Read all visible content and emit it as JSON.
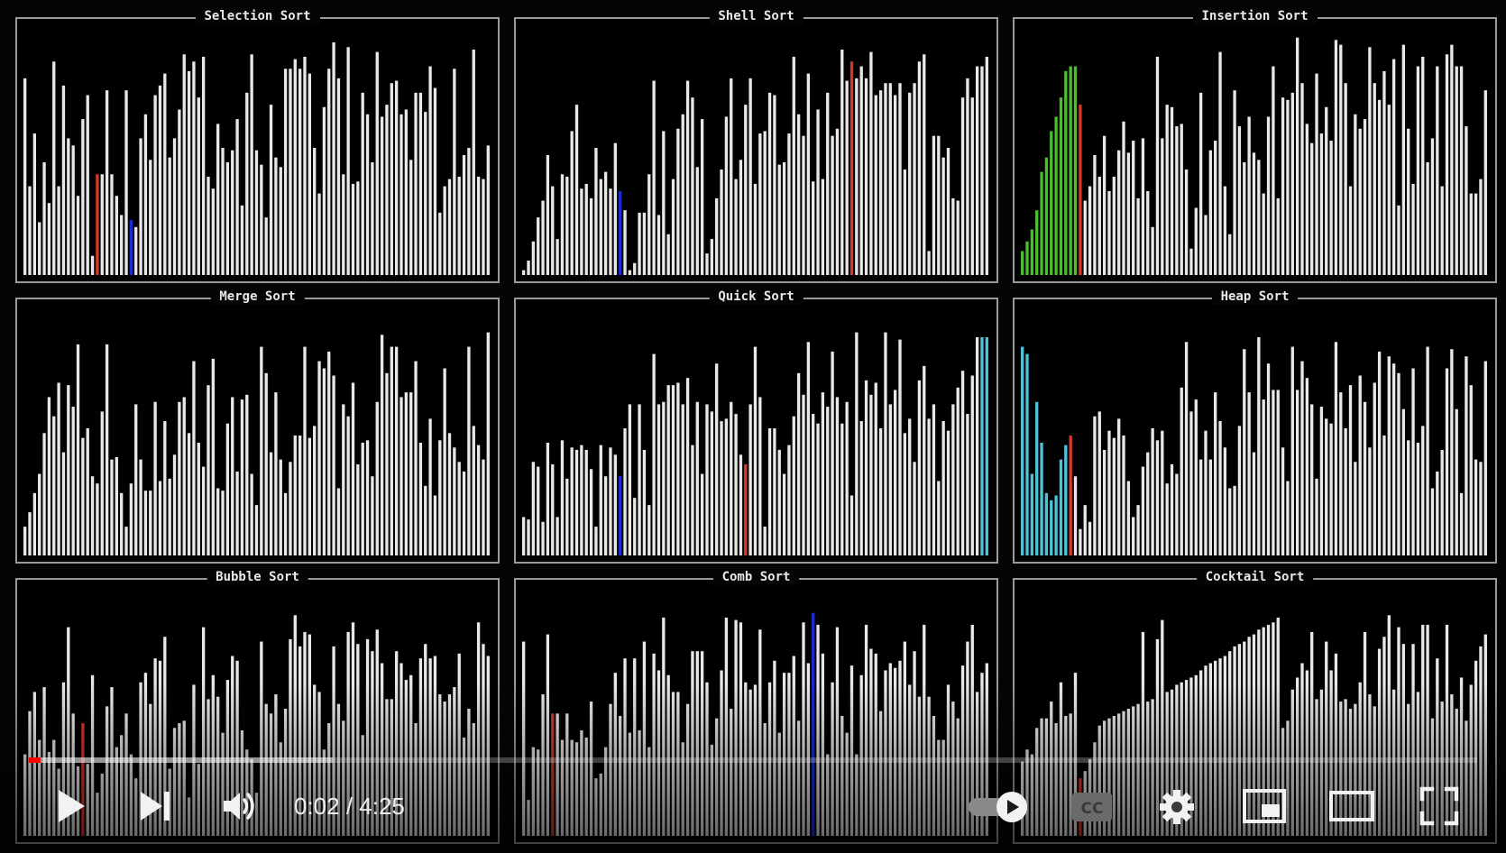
{
  "panels": [
    {
      "title": "Selection Sort",
      "values": [
        82,
        37,
        59,
        22,
        47,
        30,
        89,
        37,
        79,
        57,
        54,
        33,
        65,
        75,
        8,
        42,
        42,
        77,
        42,
        33,
        25,
        77,
        23,
        20,
        57,
        67,
        48,
        75,
        79,
        84,
        49,
        57,
        69,
        92,
        85,
        89,
        74,
        91,
        41,
        36,
        63,
        53,
        47,
        52,
        65,
        29,
        76,
        92,
        52,
        46,
        24,
        71,
        49,
        45,
        86,
        86,
        90,
        86,
        91,
        84,
        53,
        34,
        70,
        86,
        97,
        82,
        42,
        95,
        38,
        39,
        76,
        67,
        47,
        93,
        66,
        71,
        80,
        81,
        67,
        69,
        48,
        76,
        76,
        68,
        87,
        78,
        26,
        37,
        40,
        86,
        41,
        50,
        53,
        94,
        41,
        40,
        54
      ],
      "highlights": [
        {
          "index": 15,
          "color": "red"
        },
        {
          "index": 22,
          "color": "blue"
        }
      ]
    },
    {
      "title": "Shell Sort",
      "values": [
        2,
        6,
        14,
        24,
        31,
        50,
        37,
        15,
        42,
        41,
        60,
        71,
        36,
        38,
        32,
        53,
        40,
        43,
        36,
        55,
        35,
        27,
        2,
        5,
        26,
        26,
        42,
        81,
        25,
        60,
        17,
        40,
        61,
        67,
        81,
        74,
        45,
        65,
        9,
        15,
        32,
        44,
        66,
        82,
        40,
        48,
        71,
        82,
        38,
        59,
        60,
        76,
        75,
        46,
        47,
        59,
        91,
        67,
        58,
        84,
        39,
        69,
        40,
        76,
        58,
        61,
        94,
        81,
        89,
        82,
        87,
        82,
        93,
        75,
        77,
        80,
        80,
        75,
        80,
        44,
        76,
        80,
        89,
        92,
        10,
        58,
        58,
        49,
        53,
        32,
        31,
        74,
        82,
        74,
        87,
        87,
        91
      ],
      "highlights": [
        {
          "index": 20,
          "color": "blue"
        },
        {
          "index": 68,
          "color": "red"
        }
      ]
    },
    {
      "title": "Insertion Sort",
      "values": [
        10,
        14,
        19,
        27,
        43,
        49,
        60,
        66,
        74,
        85,
        87,
        87,
        71,
        31,
        37,
        50,
        41,
        58,
        35,
        41,
        52,
        64,
        51,
        56,
        32,
        57,
        35,
        20,
        91,
        57,
        71,
        70,
        62,
        63,
        44,
        11,
        28,
        76,
        25,
        52,
        56,
        93,
        37,
        17,
        77,
        62,
        47,
        66,
        51,
        48,
        34,
        66,
        87,
        32,
        74,
        73,
        76,
        99,
        80,
        63,
        55,
        84,
        59,
        70,
        56,
        98,
        96,
        80,
        37,
        67,
        61,
        65,
        95,
        80,
        73,
        85,
        71,
        90,
        29,
        96,
        61,
        38,
        87,
        91,
        47,
        57,
        87,
        37,
        92,
        96,
        87,
        87,
        62,
        34,
        34,
        40,
        77
      ],
      "highlights": [
        {
          "index": 0,
          "color": "green"
        },
        {
          "index": 1,
          "color": "green"
        },
        {
          "index": 2,
          "color": "green"
        },
        {
          "index": 3,
          "color": "green"
        },
        {
          "index": 4,
          "color": "green"
        },
        {
          "index": 5,
          "color": "green"
        },
        {
          "index": 6,
          "color": "green"
        },
        {
          "index": 7,
          "color": "green"
        },
        {
          "index": 8,
          "color": "green"
        },
        {
          "index": 9,
          "color": "green"
        },
        {
          "index": 10,
          "color": "green"
        },
        {
          "index": 11,
          "color": "green"
        },
        {
          "index": 12,
          "color": "red"
        }
      ]
    },
    {
      "title": "Merge Sort",
      "values": [
        12,
        18,
        26,
        34,
        51,
        66,
        58,
        72,
        43,
        71,
        62,
        88,
        49,
        53,
        33,
        30,
        60,
        88,
        40,
        41,
        26,
        12,
        30,
        63,
        40,
        27,
        27,
        64,
        31,
        56,
        32,
        42,
        64,
        66,
        51,
        81,
        47,
        37,
        71,
        82,
        28,
        27,
        55,
        66,
        35,
        65,
        67,
        34,
        21,
        87,
        76,
        43,
        68,
        40,
        26,
        39,
        50,
        50,
        87,
        49,
        54,
        81,
        78,
        85,
        75,
        28,
        63,
        58,
        72,
        38,
        47,
        48,
        33,
        64,
        92,
        76,
        87,
        87,
        66,
        68,
        68,
        81,
        47,
        29,
        57,
        25,
        48,
        78,
        51,
        45,
        39,
        35,
        87,
        54,
        46,
        40,
        93
      ],
      "highlights": []
    },
    {
      "title": "Quick Sort",
      "values": [
        16,
        15,
        39,
        37,
        14,
        47,
        38,
        16,
        48,
        32,
        45,
        44,
        46,
        44,
        36,
        12,
        46,
        33,
        45,
        42,
        33,
        53,
        63,
        24,
        63,
        44,
        21,
        84,
        63,
        64,
        71,
        71,
        72,
        63,
        74,
        46,
        64,
        34,
        63,
        60,
        80,
        56,
        57,
        64,
        59,
        42,
        38,
        63,
        87,
        66,
        12,
        53,
        53,
        44,
        34,
        46,
        58,
        76,
        67,
        89,
        59,
        55,
        68,
        62,
        85,
        66,
        55,
        64,
        25,
        93,
        56,
        73,
        67,
        72,
        53,
        93,
        63,
        69,
        90,
        51,
        57,
        39,
        73,
        79,
        57,
        63,
        31,
        56,
        52,
        63,
        70,
        77,
        59,
        75,
        91,
        91,
        91
      ],
      "highlights": [
        {
          "index": 20,
          "color": "blue"
        },
        {
          "index": 46,
          "color": "red"
        },
        {
          "index": 95,
          "color": "cyan"
        },
        {
          "index": 96,
          "color": "cyan"
        }
      ]
    },
    {
      "title": "Heap Sort",
      "values": [
        87,
        84,
        34,
        64,
        47,
        26,
        23,
        25,
        40,
        46,
        50,
        33,
        11,
        21,
        14,
        58,
        60,
        44,
        52,
        49,
        57,
        50,
        31,
        16,
        21,
        37,
        43,
        53,
        48,
        52,
        30,
        38,
        34,
        70,
        89,
        60,
        65,
        40,
        52,
        40,
        68,
        56,
        45,
        28,
        29,
        54,
        86,
        68,
        43,
        91,
        65,
        80,
        69,
        69,
        45,
        31,
        87,
        69,
        81,
        74,
        63,
        32,
        62,
        57,
        55,
        89,
        68,
        53,
        71,
        39,
        75,
        64,
        45,
        72,
        85,
        50,
        83,
        80,
        76,
        61,
        48,
        78,
        47,
        54,
        87,
        28,
        35,
        44,
        78,
        86,
        61,
        26,
        83,
        71,
        40,
        39,
        81
      ],
      "highlights": [
        {
          "index": 0,
          "color": "cyan"
        },
        {
          "index": 1,
          "color": "cyan"
        },
        {
          "index": 2,
          "color": "cyan"
        },
        {
          "index": 3,
          "color": "cyan"
        },
        {
          "index": 4,
          "color": "cyan"
        },
        {
          "index": 5,
          "color": "cyan"
        },
        {
          "index": 6,
          "color": "cyan"
        },
        {
          "index": 7,
          "color": "cyan"
        },
        {
          "index": 8,
          "color": "cyan"
        },
        {
          "index": 9,
          "color": "cyan"
        },
        {
          "index": 10,
          "color": "red"
        }
      ]
    },
    {
      "title": "Bubble Sort",
      "values": [
        34,
        52,
        60,
        40,
        62,
        35,
        40,
        28,
        64,
        87,
        51,
        29,
        47,
        30,
        67,
        18,
        26,
        54,
        62,
        37,
        42,
        51,
        34,
        24,
        64,
        68,
        55,
        74,
        73,
        83,
        28,
        45,
        47,
        48,
        16,
        63,
        30,
        87,
        57,
        67,
        58,
        43,
        65,
        75,
        73,
        44,
        36,
        32,
        18,
        81,
        55,
        51,
        59,
        39,
        53,
        82,
        92,
        79,
        85,
        84,
        63,
        60,
        36,
        47,
        79,
        55,
        48,
        85,
        89,
        80,
        42,
        82,
        77,
        86,
        72,
        57,
        57,
        77,
        72,
        65,
        67,
        47,
        74,
        80,
        74,
        75,
        59,
        56,
        59,
        62,
        76,
        41,
        53,
        47,
        89,
        80,
        75
      ],
      "highlights": [
        {
          "index": 12,
          "color": "red"
        }
      ]
    },
    {
      "title": "Comb Sort",
      "values": [
        81,
        15,
        37,
        36,
        59,
        84,
        51,
        51,
        40,
        51,
        40,
        39,
        44,
        41,
        56,
        24,
        26,
        37,
        55,
        68,
        50,
        74,
        43,
        74,
        44,
        81,
        37,
        76,
        69,
        91,
        67,
        60,
        60,
        39,
        55,
        77,
        77,
        77,
        64,
        38,
        49,
        69,
        91,
        53,
        90,
        89,
        64,
        61,
        63,
        86,
        47,
        64,
        73,
        43,
        68,
        68,
        75,
        48,
        89,
        72,
        93,
        88,
        76,
        34,
        64,
        87,
        50,
        43,
        71,
        34,
        67,
        88,
        78,
        76,
        52,
        69,
        72,
        70,
        73,
        81,
        63,
        77,
        58,
        88,
        58,
        50,
        40,
        40,
        63,
        56,
        49,
        71,
        81,
        88,
        60,
        68,
        72
      ],
      "highlights": [
        {
          "index": 6,
          "color": "red"
        },
        {
          "index": 60,
          "color": "blue"
        }
      ]
    },
    {
      "title": "Cocktail Sort",
      "values": [
        31,
        36,
        34,
        45,
        49,
        49,
        56,
        47,
        64,
        50,
        51,
        68,
        24,
        27,
        32,
        39,
        46,
        48,
        49,
        50,
        51,
        52,
        53,
        54,
        55,
        85,
        56,
        57,
        82,
        90,
        60,
        61,
        63,
        64,
        65,
        66,
        67,
        69,
        71,
        72,
        73,
        74,
        75,
        77,
        79,
        80,
        81,
        83,
        84,
        86,
        87,
        88,
        89,
        91,
        45,
        48,
        61,
        66,
        72,
        69,
        85,
        57,
        61,
        81,
        69,
        76,
        56,
        57,
        53,
        55,
        64,
        85,
        59,
        54,
        78,
        83,
        92,
        61,
        87,
        80,
        55,
        80,
        60,
        88,
        88,
        49,
        74,
        56,
        88,
        59,
        53,
        66,
        48,
        63,
        73,
        79,
        84
      ],
      "highlights": [
        {
          "index": 12,
          "color": "red"
        }
      ]
    }
  ],
  "colors": {
    "bar": "#e8e8e8",
    "red": "#d43a2a",
    "blue": "#1a2ccf",
    "green": "#4bbd2e",
    "cyan": "#4fc4d8",
    "progress_played": "#ff0000"
  },
  "controls": {
    "play_icon": "play-icon",
    "next_icon": "next-icon",
    "volume_icon": "volume-icon",
    "current_time": "0:02",
    "time_separator": " / ",
    "duration": "4:25",
    "autoplay_icon": "autoplay-toggle-icon",
    "captions_icon": "captions-icon",
    "settings_icon": "gear-icon",
    "miniplayer_icon": "miniplayer-icon",
    "theater_icon": "theater-mode-icon",
    "fullscreen_icon": "fullscreen-icon",
    "progress_played": 0.008,
    "progress_loaded": 0.21
  }
}
